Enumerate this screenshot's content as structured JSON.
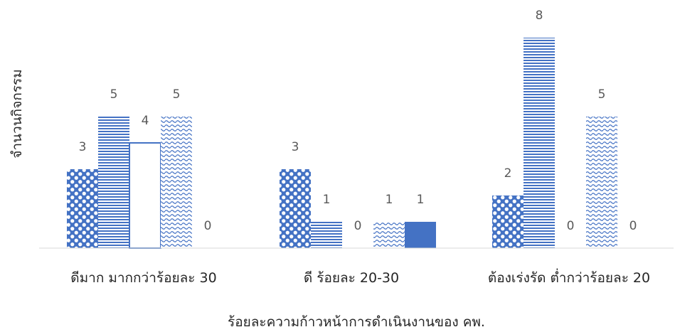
{
  "chart_data": {
    "type": "bar",
    "xlabel": "ร้อยละความก้าวหน้าการดำเนินงานของ คพ.",
    "ylabel": "จำนวนกิจกรรม",
    "categories": [
      "ดีมาก มากกว่าร้อยละ 30",
      "ดี ร้อยละ 20-30",
      "ต้องเร่งรัด ต่ำกว่าร้อยละ 20"
    ],
    "series": [
      {
        "values": [
          3,
          3,
          2
        ],
        "pattern": "polka",
        "color": "#4472C4"
      },
      {
        "values": [
          5,
          1,
          8
        ],
        "pattern": "hstripe",
        "color": "#4472C4"
      },
      {
        "values": [
          4,
          0,
          0
        ],
        "pattern": "outline",
        "color": "#4472C4"
      },
      {
        "values": [
          5,
          1,
          5
        ],
        "pattern": "wave",
        "color": "#4472C4"
      },
      {
        "values": [
          0,
          1,
          0
        ],
        "pattern": "solid",
        "color": "#4472C4"
      }
    ],
    "ylim": [
      0,
      8
    ],
    "grid": false,
    "legend": "none",
    "data_labels": true
  }
}
